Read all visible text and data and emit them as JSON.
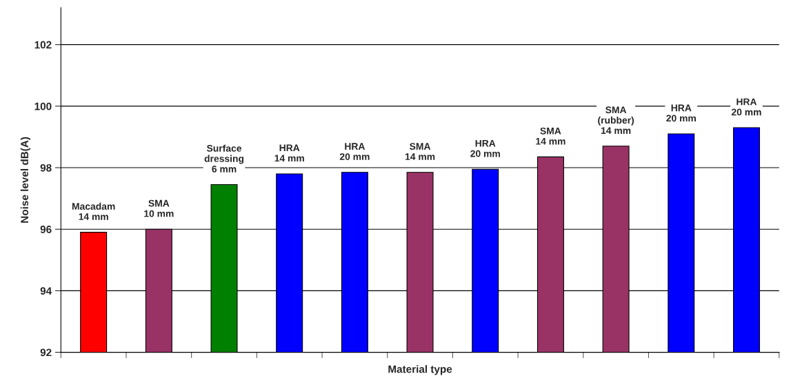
{
  "chart_data": {
    "type": "bar",
    "xlabel": "Material type",
    "ylabel": "Noise level dB(A)",
    "categories": [
      "Macadam\n14 mm",
      "SMA\n10 mm",
      "Surface\ndressing\n6 mm",
      "HRA\n14 mm",
      "HRA\n20 mm",
      "SMA\n14 mm",
      "HRA\n20 mm",
      "SMA\n14 mm",
      "SMA\n(rubber)\n14 mm",
      "HRA\n20 mm",
      "HRA\n20 mm"
    ],
    "values": [
      95.9,
      96.0,
      97.45,
      97.8,
      97.85,
      97.85,
      97.95,
      98.35,
      98.7,
      99.1,
      99.3
    ],
    "colors": [
      "#ff0000",
      "#993366",
      "#008000",
      "#0000ff",
      "#0000ff",
      "#993366",
      "#0000ff",
      "#993366",
      "#993366",
      "#0000ff",
      "#0000ff"
    ],
    "ylim": [
      92,
      103.2
    ],
    "yticks": [
      92,
      94,
      96,
      98,
      100,
      102
    ],
    "grid": "y",
    "legend": false
  }
}
